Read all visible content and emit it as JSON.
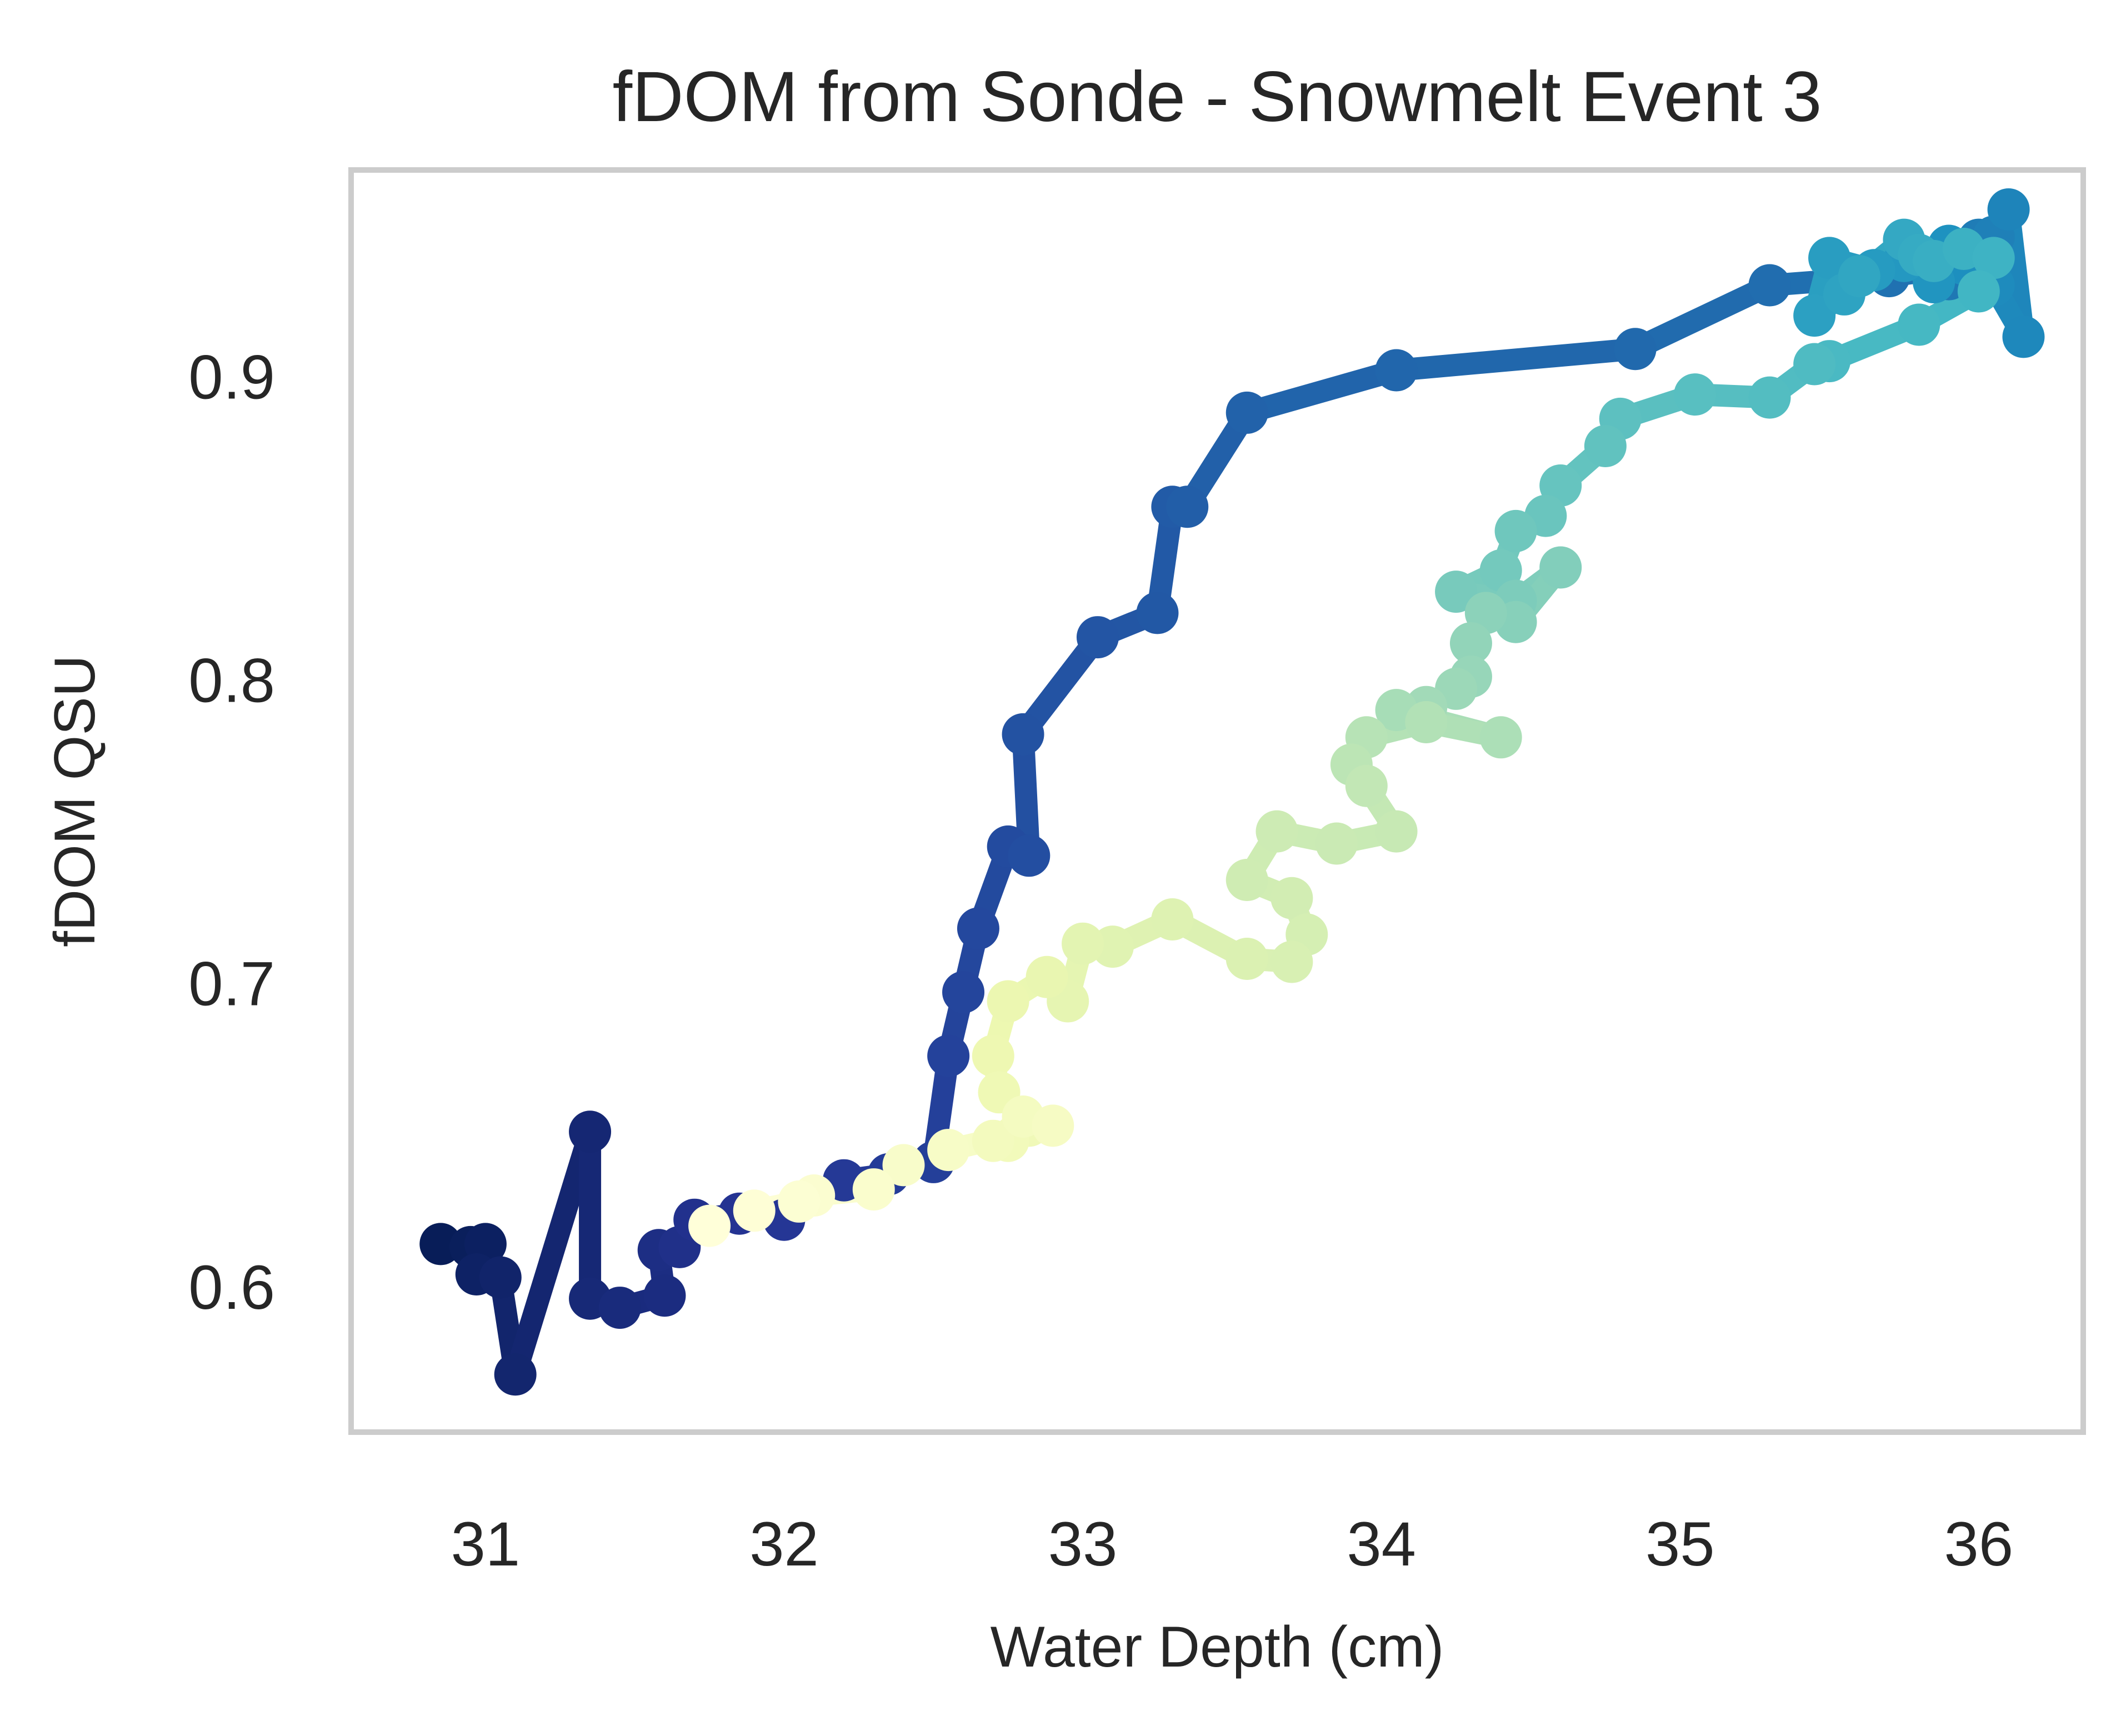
{
  "chart_data": {
    "type": "line",
    "title": "fDOM from Sonde - Snowmelt Event 3",
    "xlabel": "Water Depth (cm)",
    "ylabel": "fDOM QSU",
    "xlim": [
      30.55,
      36.35
    ],
    "ylim": [
      0.552,
      0.968
    ],
    "xticks": [
      31,
      32,
      33,
      34,
      35,
      36
    ],
    "yticks": [
      0.6,
      0.7,
      0.8,
      0.9
    ],
    "grid": false,
    "legend": "none",
    "colormap": "YlGnBu_r",
    "colormap_stops": [
      "#081d58",
      "#253494",
      "#225ea8",
      "#1d91c0",
      "#41b6c4",
      "#7fcdbb",
      "#c7e9b4",
      "#edf8b1",
      "#ffffd9"
    ],
    "frame_color": "#cccccc",
    "series": [
      {
        "x": [
          30.85,
          30.95,
          31.0,
          30.97,
          31.05,
          31.1,
          31.35,
          31.35,
          31.45,
          31.6,
          31.58,
          31.65,
          31.7,
          31.85,
          32.0,
          32.2,
          32.35,
          32.5,
          32.55,
          32.6,
          32.65,
          32.75,
          32.82,
          32.8,
          33.05,
          33.25,
          33.3,
          33.35,
          33.55,
          34.05,
          34.85,
          35.3,
          35.7,
          35.85,
          35.9,
          36.0,
          36.05,
          36.1,
          36.15,
          36.05,
          35.95,
          35.9,
          35.85,
          35.75,
          35.65,
          35.5,
          35.45,
          35.55,
          35.6,
          35.75,
          35.8,
          35.85,
          35.95,
          36.05,
          36.0,
          35.8,
          35.5,
          35.45,
          35.3,
          35.05,
          34.8,
          34.75,
          34.6,
          34.55,
          34.45,
          34.4,
          34.25,
          34.45,
          34.6,
          34.45,
          34.35,
          34.3,
          34.3,
          34.25,
          34.15,
          34.05,
          34.4,
          34.15,
          33.95,
          33.9,
          33.95,
          34.05,
          33.85,
          33.65,
          33.55,
          33.7,
          33.75,
          33.7,
          33.55,
          33.3,
          33.1,
          33.0,
          32.95,
          32.88,
          32.75,
          32.7,
          32.72,
          32.82,
          32.75,
          32.7,
          32.8,
          32.9,
          32.55,
          32.4,
          32.3,
          32.1,
          32.05,
          31.9,
          31.75
        ],
        "y": [
          0.614,
          0.613,
          0.614,
          0.604,
          0.603,
          0.571,
          0.651,
          0.596,
          0.593,
          0.597,
          0.612,
          0.613,
          0.622,
          0.624,
          0.622,
          0.635,
          0.637,
          0.641,
          0.676,
          0.697,
          0.718,
          0.745,
          0.742,
          0.782,
          0.814,
          0.822,
          0.857,
          0.857,
          0.888,
          0.902,
          0.909,
          0.93,
          0.933,
          0.935,
          0.932,
          0.945,
          0.946,
          0.955,
          0.913,
          0.93,
          0.937,
          0.943,
          0.931,
          0.938,
          0.935,
          0.939,
          0.92,
          0.927,
          0.933,
          0.945,
          0.94,
          0.938,
          0.942,
          0.939,
          0.928,
          0.917,
          0.905,
          0.904,
          0.893,
          0.894,
          0.886,
          0.877,
          0.864,
          0.854,
          0.849,
          0.836,
          0.829,
          0.826,
          0.837,
          0.819,
          0.822,
          0.812,
          0.801,
          0.797,
          0.791,
          0.79,
          0.781,
          0.786,
          0.781,
          0.772,
          0.765,
          0.75,
          0.746,
          0.75,
          0.734,
          0.728,
          0.716,
          0.707,
          0.708,
          0.721,
          0.712,
          0.713,
          0.694,
          0.702,
          0.694,
          0.676,
          0.664,
          0.653,
          0.648,
          0.648,
          0.656,
          0.653,
          0.645,
          0.64,
          0.632,
          0.63,
          0.628,
          0.625,
          0.62
        ]
      }
    ]
  }
}
